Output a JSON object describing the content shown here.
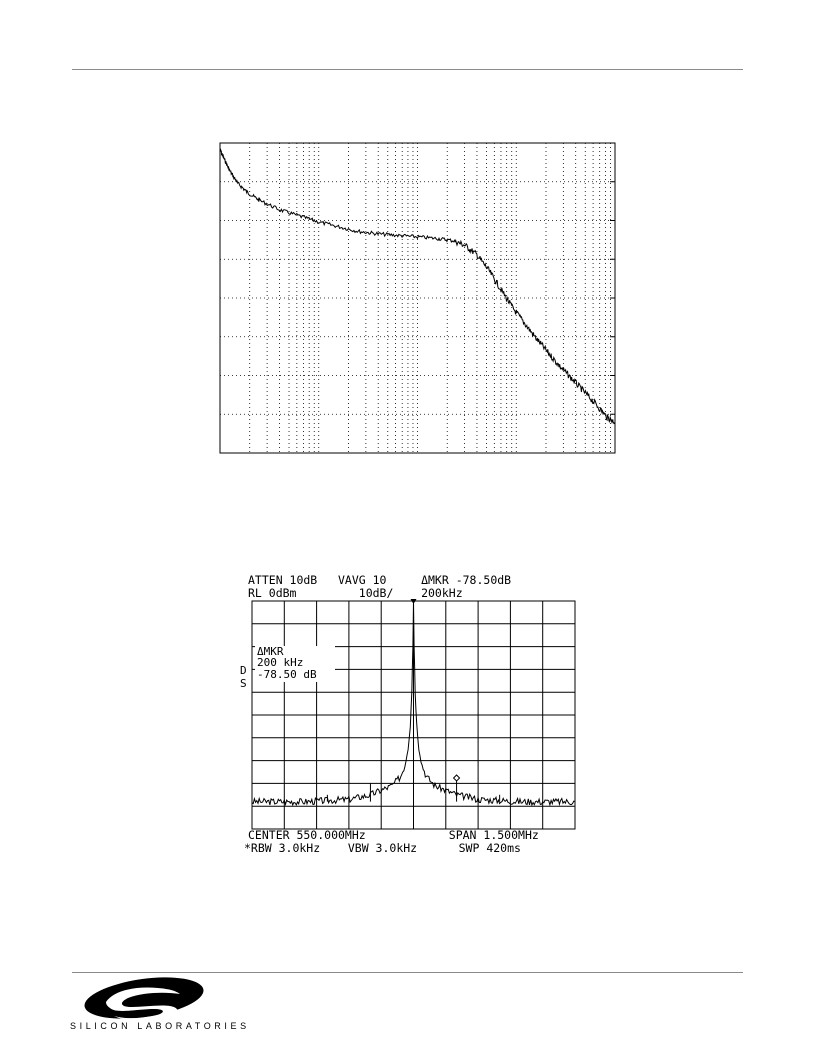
{
  "figure1": {
    "chart_data": {
      "type": "line",
      "x_scale": "log",
      "x_decades": 4,
      "y_divisions": 8,
      "grid": "dotted",
      "title": "",
      "xlabel": "",
      "ylabel": "",
      "series": [
        {
          "relative_trace": [
            [
              0.0,
              0.02
            ],
            [
              0.01,
              0.05
            ],
            [
              0.025,
              0.09
            ],
            [
              0.045,
              0.13
            ],
            [
              0.07,
              0.16
            ],
            [
              0.1,
              0.185
            ],
            [
              0.15,
              0.215
            ],
            [
              0.2,
              0.235
            ],
            [
              0.25,
              0.255
            ],
            [
              0.3,
              0.27
            ],
            [
              0.35,
              0.285
            ],
            [
              0.4,
              0.293
            ],
            [
              0.45,
              0.298
            ],
            [
              0.5,
              0.303
            ],
            [
              0.55,
              0.308
            ],
            [
              0.59,
              0.315
            ],
            [
              0.62,
              0.33
            ],
            [
              0.65,
              0.36
            ],
            [
              0.68,
              0.41
            ],
            [
              0.71,
              0.47
            ],
            [
              0.74,
              0.53
            ],
            [
              0.77,
              0.58
            ],
            [
              0.8,
              0.63
            ],
            [
              0.83,
              0.675
            ],
            [
              0.86,
              0.72
            ],
            [
              0.89,
              0.76
            ],
            [
              0.92,
              0.8
            ],
            [
              0.95,
              0.84
            ],
            [
              0.98,
              0.885
            ],
            [
              1.0,
              0.9
            ]
          ]
        }
      ]
    }
  },
  "figure2": {
    "header": {
      "line1": "ATTEN 10dB   VAVG 10     ΔMKR -78.50dB",
      "line2": "RL 0dBm         10dB/    200kHz"
    },
    "marker": {
      "line1": "ΔMKR",
      "line2": "200 kHz",
      "line3": "-78.50 dB"
    },
    "side_labels": {
      "d": "D",
      "s": "S"
    },
    "footer": {
      "line1": "CENTER 550.000MHz            SPAN 1.500MHz",
      "line2": "*RBW 3.0kHz    VBW 3.0kHz      SWP 420ms"
    },
    "chart_data": {
      "type": "line",
      "center_MHz": 550.0,
      "span_MHz": 1.5,
      "reference_level_dBm": 0,
      "scale_dB_per_div": 10,
      "x_divisions": 10,
      "y_divisions": 10,
      "grid": true,
      "series": [
        {
          "points_offset_kHz_dB": [
            [
              -750,
              -88
            ],
            [
              -500,
              -88
            ],
            [
              -300,
              -87
            ],
            [
              -200,
              -85
            ],
            [
              -100,
              -81
            ],
            [
              -60,
              -77
            ],
            [
              -40,
              -72
            ],
            [
              -25,
              -64
            ],
            [
              -15,
              -54
            ],
            [
              -8,
              -40
            ],
            [
              -3,
              -20
            ],
            [
              0,
              0
            ],
            [
              3,
              -20
            ],
            [
              8,
              -40
            ],
            [
              15,
              -54
            ],
            [
              25,
              -64
            ],
            [
              40,
              -72
            ],
            [
              60,
              -77
            ],
            [
              100,
              -81
            ],
            [
              200,
              -85
            ],
            [
              300,
              -87
            ],
            [
              500,
              -88
            ],
            [
              750,
              -88
            ]
          ],
          "spurs_offset_kHz_dB": [
            [
              -400,
              -85
            ],
            [
              -200,
              -80
            ],
            [
              200,
              -78.5
            ],
            [
              400,
              -85
            ]
          ]
        }
      ],
      "delta_marker": {
        "offset_kHz": 200,
        "delta_dB": -78.5
      }
    }
  },
  "footer": {
    "logo_text": "SILICON LABORATORIES"
  }
}
